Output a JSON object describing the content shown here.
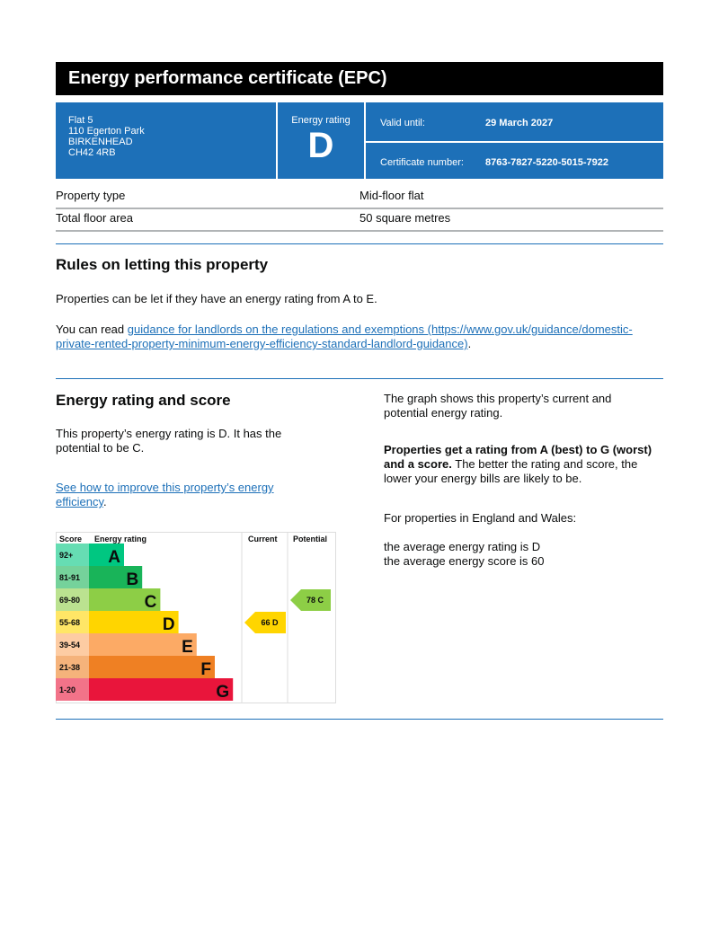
{
  "header": {
    "title": "Energy performance certificate (EPC)"
  },
  "address": [
    "Flat 5",
    "110 Egerton Park",
    "BIRKENHEAD",
    "CH42 4RB"
  ],
  "energy_rating": {
    "label": "Energy rating",
    "value": "D"
  },
  "valid_until": {
    "label": "Valid until:",
    "value": "29 March 2027"
  },
  "certificate_number": {
    "label": "Certificate number:",
    "value": "8763-7827-5220-5015-7922"
  },
  "property": [
    {
      "label": "Property type",
      "value": "Mid-floor flat"
    },
    {
      "label": "Total floor area",
      "value": "50 square metres"
    }
  ],
  "rules": {
    "heading": "Rules on letting this property",
    "p1": "Properties can be let if they have an energy rating from A to E.",
    "p2_prefix": "You can read ",
    "p2_link": "guidance for landlords on the regulations and exemptions (https://www.gov.uk/guidance/domestic-private-rented-property-minimum-energy-efficiency-standard-landlord-guidance)",
    "p2_suffix": "."
  },
  "score": {
    "heading": "Energy rating and score",
    "p1": "This property’s energy rating is D. It has the potential to be C.",
    "link": "See how to improve this property’s energy efficiency",
    "link_suffix": ".",
    "r1": "The graph shows this property’s current and potential energy rating.",
    "r2_bold": "Properties get a rating from A (best) to G (worst) and a score.",
    "r2_rest": " The better the rating and score, the lower your energy bills are likely to be.",
    "r3": "For properties in England and Wales:",
    "r4": "the average energy rating is D",
    "r5": "the average energy score is 60"
  },
  "chart_data": {
    "type": "table",
    "headers": [
      "Score",
      "Energy rating",
      "Current",
      "Potential"
    ],
    "bands": [
      {
        "letter": "A",
        "range": "92+",
        "color": "#00c781",
        "light": "#66ddb3"
      },
      {
        "letter": "B",
        "range": "81-91",
        "color": "#19b459",
        "light": "#75d29b"
      },
      {
        "letter": "C",
        "range": "69-80",
        "color": "#8dce46",
        "light": "#bbe290"
      },
      {
        "letter": "D",
        "range": "55-68",
        "color": "#ffd500",
        "light": "#ffe666"
      },
      {
        "letter": "E",
        "range": "39-54",
        "color": "#fcaa65",
        "light": "#fdcca3"
      },
      {
        "letter": "F",
        "range": "21-38",
        "color": "#ef8023",
        "light": "#f5b37b"
      },
      {
        "letter": "G",
        "range": "1-20",
        "color": "#e9153b",
        "light": "#f27389"
      }
    ],
    "current": {
      "score": 66,
      "band": "D",
      "label": "66  D"
    },
    "potential": {
      "score": 78,
      "band": "C",
      "label": "78  C"
    }
  }
}
